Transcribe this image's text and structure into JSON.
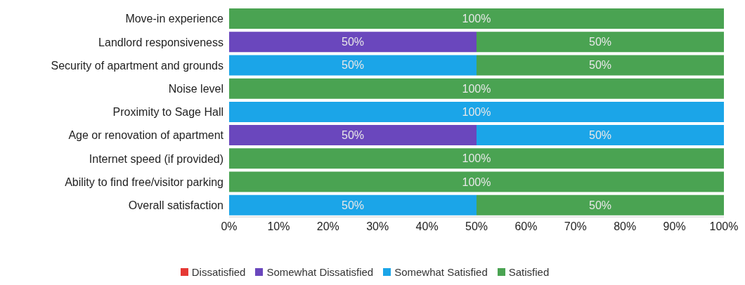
{
  "chart_data": {
    "type": "bar",
    "orientation": "horizontal",
    "stacked": true,
    "categories": [
      "Move-in experience",
      "Landlord responsiveness",
      "Security of apartment and grounds",
      "Noise level",
      "Proximity to Sage Hall",
      "Age or renovation of apartment",
      "Internet speed (if provided)",
      "Ability to find free/visitor parking",
      "Overall satisfaction"
    ],
    "series": [
      {
        "name": "Dissatisfied",
        "color": "#e53935",
        "values": [
          0,
          0,
          0,
          0,
          0,
          0,
          0,
          0,
          0
        ],
        "value_labels": [
          null,
          null,
          null,
          null,
          null,
          null,
          null,
          null,
          null
        ]
      },
      {
        "name": "Somewhat Dissatisfied",
        "color": "#6a47bd",
        "values": [
          0,
          50,
          0,
          0,
          0,
          50,
          0,
          0,
          0
        ],
        "value_labels": [
          null,
          "50%",
          null,
          null,
          null,
          "50%",
          null,
          null,
          null
        ]
      },
      {
        "name": "Somewhat Satisfied",
        "color": "#1ba5e8",
        "values": [
          0,
          0,
          50,
          0,
          100,
          50,
          0,
          0,
          50
        ],
        "value_labels": [
          null,
          null,
          "50%",
          null,
          "100%",
          "50%",
          null,
          null,
          "50%"
        ]
      },
      {
        "name": "Satisfied",
        "color": "#4aa352",
        "values": [
          100,
          50,
          50,
          100,
          0,
          0,
          100,
          100,
          50
        ],
        "value_labels": [
          "100%",
          "50%",
          "50%",
          "100%",
          null,
          null,
          "100%",
          "100%",
          "50%"
        ]
      }
    ],
    "xlim": [
      0,
      100
    ],
    "xticks": [
      {
        "value": 0,
        "label": "0%"
      },
      {
        "value": 10,
        "label": "10%"
      },
      {
        "value": 20,
        "label": "20%"
      },
      {
        "value": 30,
        "label": "30%"
      },
      {
        "value": 40,
        "label": "40%"
      },
      {
        "value": 50,
        "label": "50%"
      },
      {
        "value": 60,
        "label": "60%"
      },
      {
        "value": 70,
        "label": "70%"
      },
      {
        "value": 80,
        "label": "80%"
      },
      {
        "value": 90,
        "label": "90%"
      },
      {
        "value": 100,
        "label": "100%"
      }
    ],
    "grid": false,
    "legend": "bottom"
  }
}
